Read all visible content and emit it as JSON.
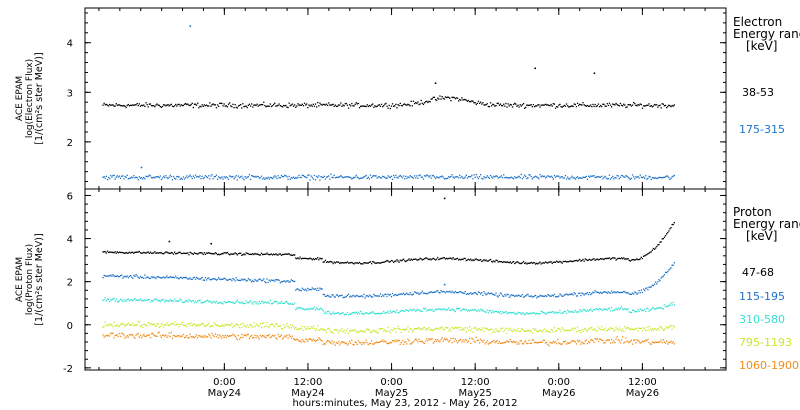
{
  "chart_data": [
    {
      "type": "scatter",
      "ylabel_lines": [
        "ACE EPAM",
        "log(Electron Flux)",
        "[1/(cm²s ster MeV)]"
      ],
      "legend_title": [
        "Electron",
        "Energy ranges",
        "[keV]"
      ],
      "yticks": [
        2,
        3,
        4
      ],
      "ylim": [
        1.05,
        4.7
      ],
      "series": [
        {
          "name": "38-53",
          "color": "#000000",
          "base": 2.75,
          "spread": 0.07,
          "bumps": [
            {
              "t": 32,
              "dy": 0.15
            }
          ],
          "outliers": [
            {
              "t": 30.2,
              "v": 3.2
            },
            {
              "t": 44.5,
              "v": 3.5
            },
            {
              "t": 53,
              "v": 3.4
            }
          ]
        },
        {
          "name": "175-315",
          "color": "#1e73c8",
          "base": 1.3,
          "spread": 0.07,
          "bumps": [],
          "outliers": [
            {
              "t": -5,
              "v": 4.35
            },
            {
              "t": -12,
              "v": 1.5
            }
          ]
        }
      ]
    },
    {
      "type": "scatter",
      "ylabel_lines": [
        "ACE EPAM",
        "log(Proton Flux)",
        "[1/(cm²s ster MeV)]"
      ],
      "legend_title": [
        "Proton",
        "Energy ranges",
        "[keV]"
      ],
      "yticks": [
        -2,
        0,
        2,
        4,
        6
      ],
      "ylim": [
        -2.1,
        6.3
      ],
      "series": [
        {
          "name": "47-68",
          "color": "#000000",
          "start": 3.4,
          "mid": 3.0,
          "end": 4.8,
          "spread": 0.08,
          "outliers": [
            {
              "t": -8,
              "v": 3.9
            },
            {
              "t": -2,
              "v": 3.8
            },
            {
              "t": 31.5,
              "v": 5.9
            }
          ]
        },
        {
          "name": "115-195",
          "color": "#1e73c8",
          "start": 2.3,
          "mid": 1.45,
          "end": 2.9,
          "spread": 0.12,
          "outliers": [
            {
              "t": 31.5,
              "v": 1.9
            }
          ]
        },
        {
          "name": "310-580",
          "color": "#33e0d0",
          "start": 1.2,
          "mid": 0.65,
          "end": 1.0,
          "spread": 0.12,
          "outliers": []
        },
        {
          "name": "795-1193",
          "color": "#c8e62b",
          "start": 0.05,
          "mid": -0.2,
          "end": -0.1,
          "spread": 0.18,
          "outliers": []
        },
        {
          "name": "1060-1900",
          "color": "#f08c1a",
          "start": -0.45,
          "mid": -0.75,
          "end": -0.8,
          "spread": 0.2,
          "outliers": []
        }
      ]
    }
  ],
  "xaxis": {
    "label": "hours:minutes, May 23, 2012 - May 26, 2012",
    "ticks": [
      {
        "t": 0,
        "time": "0:00",
        "date": "May24"
      },
      {
        "t": 12,
        "time": "12:00",
        "date": "May24"
      },
      {
        "t": 24,
        "time": "0:00",
        "date": "May25"
      },
      {
        "t": 36,
        "time": "12:00",
        "date": "May25"
      },
      {
        "t": 48,
        "time": "0:00",
        "date": "May26"
      },
      {
        "t": 60,
        "time": "12:00",
        "date": "May26"
      }
    ],
    "xlim": [
      -20,
      72
    ],
    "data_start": -17.5,
    "data_end": 64.5
  },
  "colors": {
    "axis": "#000000",
    "background": "#ffffff"
  }
}
